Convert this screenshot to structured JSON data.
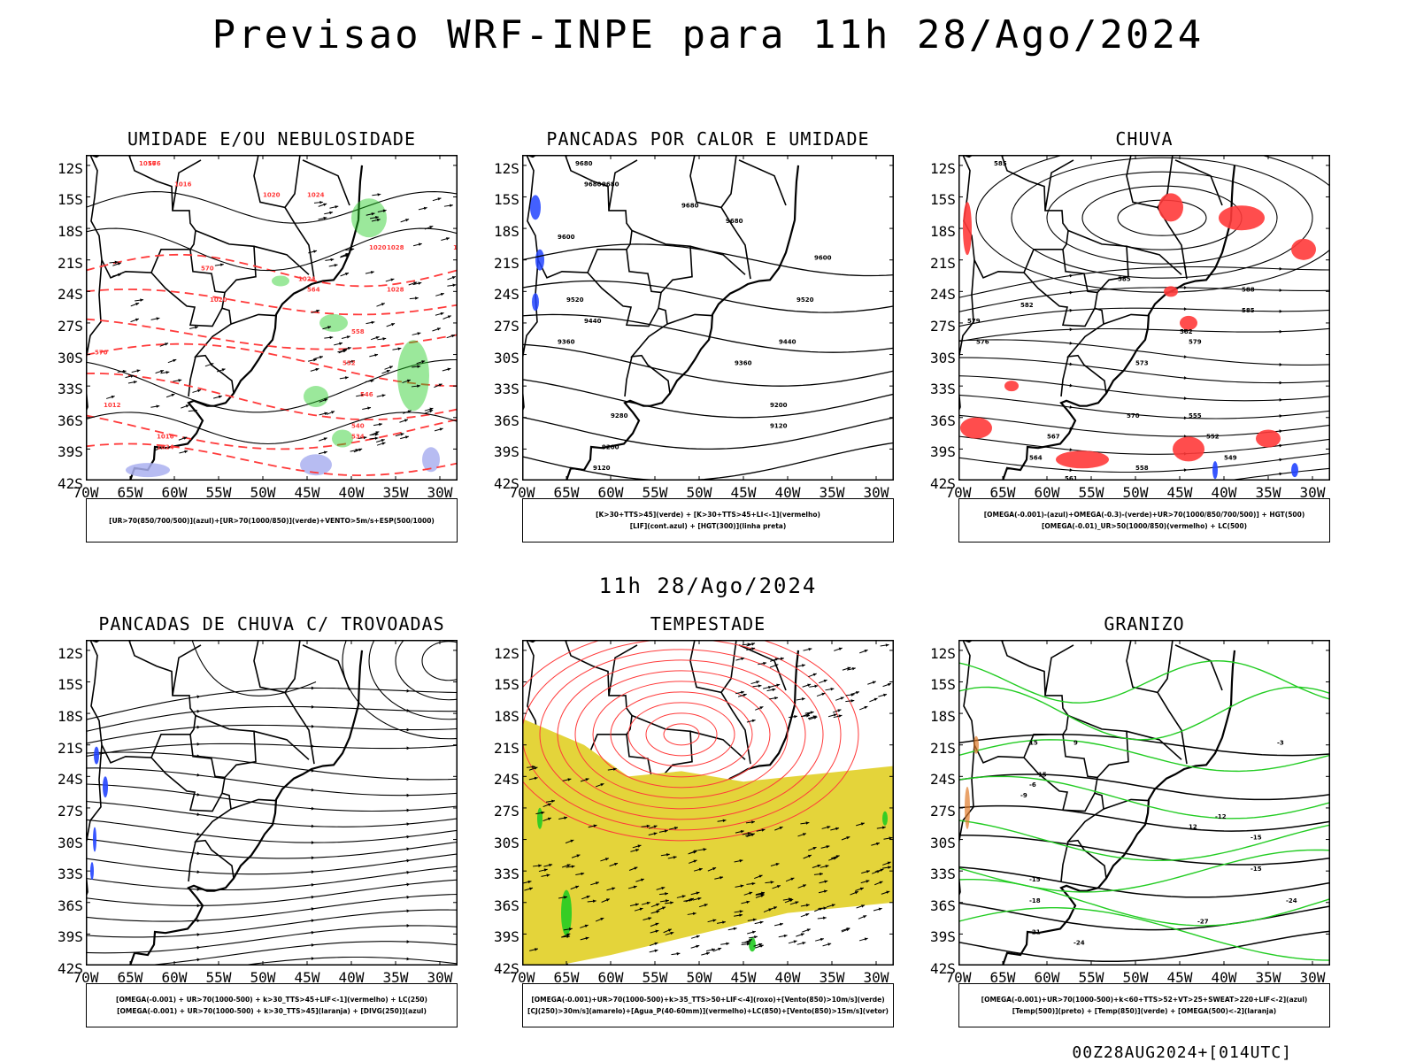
{
  "title": "Previsao WRF-INPE  para 11h 28/Ago/2024",
  "subtitle": "11h 28/Ago/2024",
  "footer": "00Z28AUG2024+[014UTC]",
  "axes": {
    "lat_labels": [
      "12S",
      "15S",
      "18S",
      "21S",
      "24S",
      "27S",
      "30S",
      "33S",
      "36S",
      "39S",
      "42S"
    ],
    "lon_labels": [
      "70W",
      "65W",
      "60W",
      "55W",
      "50W",
      "45W",
      "40W",
      "35W",
      "30W"
    ]
  },
  "panels": [
    {
      "title": "UMIDADE E/OU NEBULOSIDADE",
      "legend": [
        "[UR>70(850/700/500)](azul)+[UR>70(1000/850)](verde)+VENTO>5m/s+ESP(500/1000)"
      ],
      "contour_labels": [
        "1016",
        "1016",
        "1020",
        "1024",
        "1028",
        "1020",
        "1024",
        "1028",
        "1028",
        "1024",
        "1020",
        "1016",
        "1012",
        "570",
        "576",
        "570",
        "564",
        "558",
        "552",
        "546",
        "540",
        "534"
      ]
    },
    {
      "title": "PANCADAS POR CALOR E UMIDADE",
      "legend": [
        "[K>30+TTS>45](verde) + [K>30+TTS>45+LI<-1](vermelho)",
        "[LIF](cont.azul) + [HGT(300)](linha preta)"
      ],
      "contour_labels": [
        "9680",
        "9680",
        "9680",
        "9680",
        "9680",
        "9600",
        "9520",
        "9440",
        "9360",
        "9280",
        "9200",
        "9120",
        "9600",
        "9520",
        "9440",
        "9360",
        "9200",
        "9120"
      ]
    },
    {
      "title": "CHUVA",
      "legend": [
        "[OMEGA(-0.001)-(azul)+OMEGA(-0.3)-(verde)+UR>70(1000/850/700/500)] + HGT(500)",
        "[OMEGA(-0.01)_UR>50(1000/850)(vermelho) + LC(500)"
      ],
      "contour_labels": [
        "585",
        "585",
        "582",
        "579",
        "576",
        "573",
        "570",
        "567",
        "564",
        "561",
        "558",
        "588",
        "585",
        "582",
        "579",
        "555",
        "552",
        "549"
      ]
    },
    {
      "title": "PANCADAS DE CHUVA C/ TROVOADAS",
      "legend": [
        "[OMEGA(-0.001) + UR>70(1000-500) + k>30_TTS>45+LIF<-1](vermelho) + LC(250)",
        "[OMEGA(-0.001) + UR>70(1000-500) + k>30_TTS>45](laranja) + [DIVG(250)](azul)"
      ],
      "contour_labels": []
    },
    {
      "title": "TEMPESTADE",
      "legend": [
        "[OMEGA(-0.001)+UR>70(1000-500)+k>35_TTS>50+LIF<-4](roxo)+[Vento(850)>10m/s](verde)",
        "[CJ(250)>30m/s](amarelo)+[Agua_P(40-60mm)](vermelho)+LC(850)+[Vento(850)>15m/s](vetor)"
      ],
      "contour_labels": []
    },
    {
      "title": "GRANIZO",
      "legend": [
        "[OMEGA(-0.001)+UR>70(1000-500)+k<60+TTS>52+VT>25+SWEAT>220+LIF<-2](azul)",
        "[Temp(500)](preto) + [Temp(850)](verde) + [OMEGA(500)<-2](laranja)"
      ],
      "contour_labels": [
        "-3",
        "-6",
        "-9",
        "-12",
        "-15",
        "-15",
        "-18",
        "-21",
        "-24",
        "-27",
        "-24",
        "-15",
        "15",
        "15",
        "9",
        "12"
      ]
    }
  ],
  "colors": {
    "coast": "#000000",
    "red": "#ff3a3a",
    "green": "#22cc22",
    "blue": "#2244ff",
    "lavender": "#aab0f0",
    "yellow": "#e4d43a",
    "orange": "#e07a2a"
  }
}
